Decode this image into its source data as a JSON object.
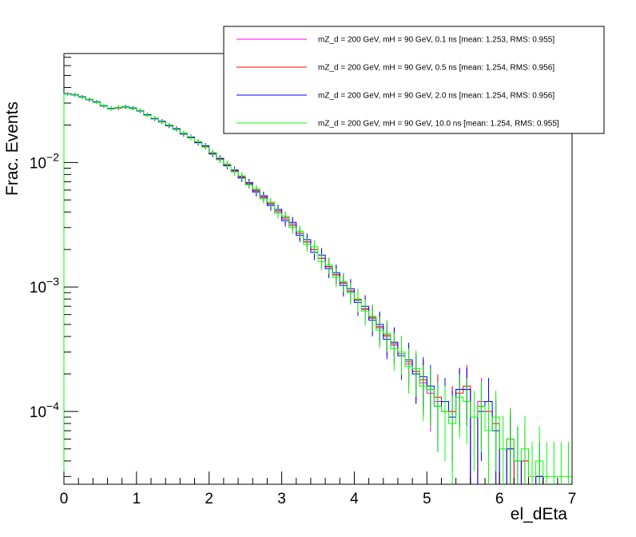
{
  "chart_data": {
    "type": "line",
    "style": "step-histogram-with-error-bars",
    "xlabel": "el_dEta",
    "ylabel": "Frac. Events",
    "xlim": [
      0,
      7
    ],
    "ylim": [
      2.6e-05,
      0.075
    ],
    "y_scale": "log",
    "x_ticks": [
      0,
      1,
      2,
      3,
      4,
      5,
      6,
      7
    ],
    "y_ticks": [
      {
        "value": 0.0001,
        "base": "10",
        "exp": "−4"
      },
      {
        "value": 0.001,
        "base": "10",
        "exp": "−3"
      },
      {
        "value": 0.01,
        "base": "10",
        "exp": "−2"
      }
    ],
    "bin_width": 0.1,
    "grid": false,
    "legend_position": "top-right",
    "x": [
      0.05,
      0.15,
      0.25,
      0.35,
      0.45,
      0.55,
      0.65,
      0.75,
      0.85,
      0.95,
      1.05,
      1.15,
      1.25,
      1.35,
      1.45,
      1.55,
      1.65,
      1.75,
      1.85,
      1.95,
      2.05,
      2.15,
      2.25,
      2.35,
      2.45,
      2.55,
      2.65,
      2.75,
      2.85,
      2.95,
      3.05,
      3.15,
      3.25,
      3.35,
      3.45,
      3.55,
      3.65,
      3.75,
      3.85,
      3.95,
      4.05,
      4.15,
      4.25,
      4.35,
      4.45,
      4.55,
      4.65,
      4.75,
      4.85,
      4.95,
      5.05,
      5.15,
      5.25,
      5.35,
      5.45,
      5.55,
      5.65,
      5.75,
      5.85,
      5.95,
      6.05,
      6.15,
      6.25,
      6.35,
      6.45,
      6.55,
      6.65,
      6.75,
      6.85,
      6.95
    ],
    "series": [
      {
        "name": "mZ_d = 200 GeV, mH = 90 GeV, 0.1 ns [mean: 1.253, RMS: 0.955]",
        "color": "#ff00ff",
        "values": [
          0.0355,
          0.035,
          0.0335,
          0.032,
          0.0305,
          0.0285,
          0.027,
          0.0275,
          0.028,
          0.0272,
          0.026,
          0.024,
          0.0225,
          0.0212,
          0.0198,
          0.0185,
          0.017,
          0.0158,
          0.0145,
          0.0134,
          0.0118,
          0.0106,
          0.0095,
          0.0085,
          0.0076,
          0.0067,
          0.0059,
          0.0052,
          0.0046,
          0.004,
          0.0035,
          0.0031,
          0.0027,
          0.0023,
          0.002,
          0.0017,
          0.00145,
          0.00125,
          0.00107,
          0.00092,
          0.00078,
          0.00066,
          0.00056,
          0.00047,
          0.0004,
          0.00034,
          0.00029,
          0.00024,
          0.0002,
          0.00017,
          0.00014,
          0.00012,
          0.0001,
          0.0001,
          0.00015,
          0.00015,
          null,
          0.00012,
          0.0001,
          7e-05,
          null,
          5e-05,
          null,
          4e-05,
          null,
          3e-05,
          null,
          null,
          null,
          null
        ]
      },
      {
        "name": "mZ_d = 200 GeV, mH = 90 GeV, 0.5 ns [mean: 1.254, RMS: 0.956]",
        "color": "#ff0000",
        "values": [
          0.0356,
          0.0351,
          0.0336,
          0.0321,
          0.0306,
          0.0286,
          0.0271,
          0.0274,
          0.0281,
          0.0273,
          0.0261,
          0.0241,
          0.0226,
          0.0213,
          0.0199,
          0.0186,
          0.0171,
          0.0159,
          0.0146,
          0.0135,
          0.0119,
          0.0107,
          0.0096,
          0.0086,
          0.0077,
          0.0068,
          0.006,
          0.0053,
          0.0047,
          0.0041,
          0.0036,
          0.0032,
          0.0027,
          0.0023,
          0.002,
          0.0017,
          0.00146,
          0.00126,
          0.00108,
          0.00093,
          0.00079,
          0.00067,
          0.00057,
          0.00048,
          0.00041,
          0.00035,
          0.0003,
          0.00025,
          0.00021,
          0.00018,
          0.00015,
          0.00013,
          0.0001,
          0.0001,
          0.00014,
          0.00016,
          null,
          0.00011,
          0.0001,
          8e-05,
          null,
          6e-05,
          null,
          4e-05,
          null,
          3e-05,
          null,
          null,
          null,
          null
        ]
      },
      {
        "name": "mZ_d = 200 GeV, mH = 90 GeV, 2.0 ns [mean: 1.254, RMS: 0.956]",
        "color": "#0000ff",
        "values": [
          0.0357,
          0.0349,
          0.0337,
          0.0319,
          0.0307,
          0.0284,
          0.0272,
          0.0276,
          0.0279,
          0.0274,
          0.0259,
          0.0242,
          0.0224,
          0.0214,
          0.0197,
          0.0187,
          0.0169,
          0.016,
          0.0144,
          0.0136,
          0.0117,
          0.0108,
          0.0094,
          0.0087,
          0.0075,
          0.0069,
          0.0058,
          0.0054,
          0.0045,
          0.0042,
          0.0034,
          0.0033,
          0.0026,
          0.0024,
          0.0019,
          0.0018,
          0.0014,
          0.0013,
          0.00103,
          0.00097,
          0.00075,
          0.0007,
          0.00054,
          0.0005,
          0.00038,
          0.00036,
          0.00028,
          0.00026,
          0.0002,
          0.00019,
          0.00016,
          0.00011,
          0.00012,
          9e-05,
          0.00015,
          0.00015,
          null,
          0.0001,
          0.00012,
          7e-05,
          null,
          5e-05,
          4e-05,
          null,
          null,
          3e-05,
          null,
          null,
          null,
          null
        ]
      },
      {
        "name": "mZ_d = 200 GeV, mH = 90 GeV, 10.0 ns [mean: 1.254, RMS: 0.955]",
        "color": "#00ff00",
        "values": [
          0.0354,
          0.0352,
          0.0334,
          0.0322,
          0.0304,
          0.0287,
          0.0269,
          0.0277,
          0.0282,
          0.0271,
          0.0262,
          0.0239,
          0.0227,
          0.0211,
          0.02,
          0.0184,
          0.0172,
          0.0157,
          0.0147,
          0.0133,
          0.012,
          0.0105,
          0.0097,
          0.0084,
          0.0078,
          0.0066,
          0.0061,
          0.0051,
          0.0048,
          0.0039,
          0.0037,
          0.003,
          0.0028,
          0.0022,
          0.0021,
          0.0016,
          0.0015,
          0.0012,
          0.0011,
          0.0009,
          0.0008,
          0.00064,
          0.00058,
          0.00045,
          0.00042,
          0.00032,
          0.0003,
          0.00023,
          0.00022,
          0.00016,
          0.00015,
          0.00011,
          0.0001,
          8e-05,
          0.00013,
          0.00012,
          9e-05,
          0.00011,
          7e-05,
          9e-05,
          5e-05,
          6e-05,
          4e-05,
          5e-05,
          3e-05,
          4e-05,
          3e-05,
          3e-05,
          3e-05,
          3e-05
        ]
      }
    ]
  }
}
